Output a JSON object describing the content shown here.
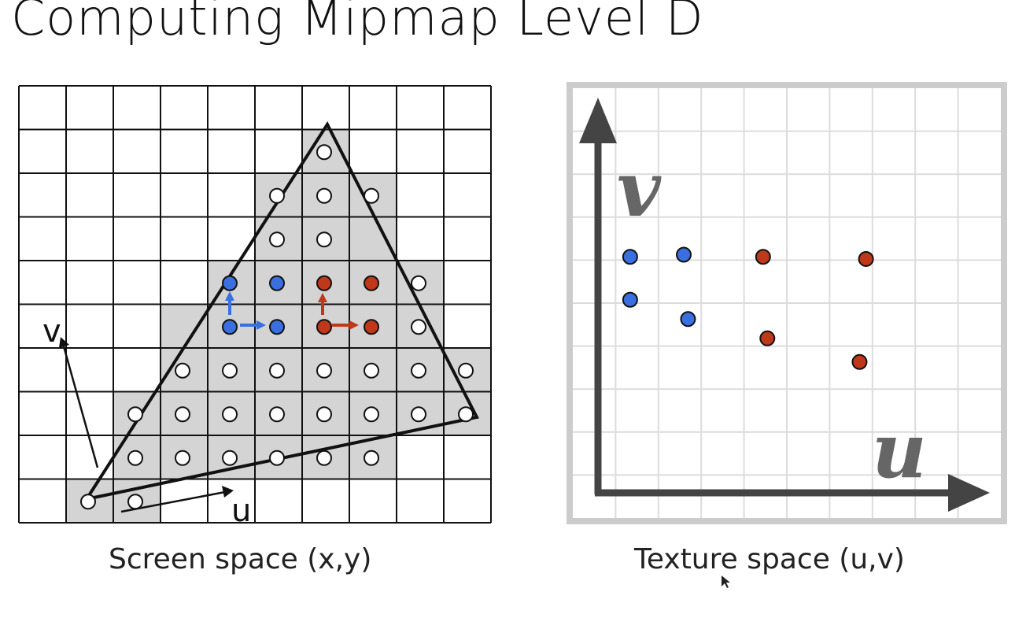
{
  "slide": {
    "title": "Computing Mipmap Level D"
  },
  "screen_space": {
    "caption": "Screen space (x,y)",
    "u_label": "u",
    "v_label": "v",
    "grid_cols": 10,
    "grid_rows": 10,
    "shaded_cells": [
      [
        6,
        1
      ],
      [
        5,
        2
      ],
      [
        6,
        2
      ],
      [
        7,
        2
      ],
      [
        5,
        3
      ],
      [
        6,
        3
      ],
      [
        7,
        3
      ],
      [
        4,
        4
      ],
      [
        5,
        4
      ],
      [
        6,
        4
      ],
      [
        7,
        4
      ],
      [
        8,
        4
      ],
      [
        3,
        5
      ],
      [
        4,
        5
      ],
      [
        5,
        5
      ],
      [
        6,
        5
      ],
      [
        7,
        5
      ],
      [
        8,
        5
      ],
      [
        3,
        6
      ],
      [
        4,
        6
      ],
      [
        5,
        6
      ],
      [
        6,
        6
      ],
      [
        7,
        6
      ],
      [
        8,
        6
      ],
      [
        9,
        6
      ],
      [
        2,
        7
      ],
      [
        3,
        7
      ],
      [
        4,
        7
      ],
      [
        5,
        7
      ],
      [
        6,
        7
      ],
      [
        7,
        7
      ],
      [
        8,
        7
      ],
      [
        9,
        7
      ],
      [
        2,
        8
      ],
      [
        3,
        8
      ],
      [
        4,
        8
      ],
      [
        5,
        8
      ],
      [
        6,
        8
      ],
      [
        7,
        8
      ],
      [
        1,
        9
      ],
      [
        2,
        9
      ]
    ],
    "white_samples": [
      [
        6,
        1
      ],
      [
        5,
        2
      ],
      [
        6,
        2
      ],
      [
        7,
        2
      ],
      [
        5,
        3
      ],
      [
        6,
        3
      ],
      [
        8,
        4
      ],
      [
        8,
        5
      ],
      [
        3,
        6
      ],
      [
        4,
        6
      ],
      [
        5,
        6
      ],
      [
        6,
        6
      ],
      [
        7,
        6
      ],
      [
        8,
        6
      ],
      [
        9,
        6
      ],
      [
        2,
        7
      ],
      [
        3,
        7
      ],
      [
        4,
        7
      ],
      [
        5,
        7
      ],
      [
        6,
        7
      ],
      [
        7,
        7
      ],
      [
        8,
        7
      ],
      [
        9,
        7
      ],
      [
        2,
        8
      ],
      [
        3,
        8
      ],
      [
        4,
        8
      ],
      [
        5,
        8
      ],
      [
        6,
        8
      ],
      [
        7,
        8
      ],
      [
        1,
        9
      ],
      [
        2,
        9
      ]
    ],
    "blue_samples": [
      [
        4,
        4
      ],
      [
        5,
        4
      ],
      [
        4,
        5
      ],
      [
        5,
        5
      ]
    ],
    "red_samples": [
      [
        6,
        4
      ],
      [
        7,
        4
      ],
      [
        6,
        5
      ],
      [
        7,
        5
      ]
    ]
  },
  "texture_space": {
    "caption": "Texture space (u,v)",
    "u_label": "u",
    "v_label": "v",
    "blue_samples": [
      [
        0.75,
        5.5
      ],
      [
        2.0,
        5.55
      ],
      [
        0.75,
        4.5
      ],
      [
        2.1,
        4.05
      ]
    ],
    "red_samples": [
      [
        3.85,
        5.5
      ],
      [
        6.25,
        5.45
      ],
      [
        3.95,
        3.6
      ],
      [
        6.1,
        3.05
      ]
    ]
  },
  "colors": {
    "blue": "#3a6fe0",
    "red": "#c0381a",
    "shade": "#d4d4d4",
    "axis": "#444444",
    "texture_grid": "#dcdcdc",
    "texture_border": "#cccccc"
  }
}
